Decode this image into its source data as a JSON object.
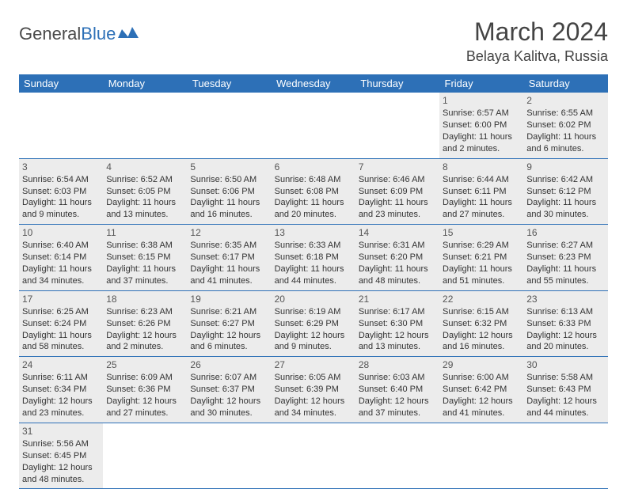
{
  "logo": {
    "text1": "General",
    "text2": "Blue"
  },
  "title": "March 2024",
  "location": "Belaya Kalitva, Russia",
  "headers": [
    "Sunday",
    "Monday",
    "Tuesday",
    "Wednesday",
    "Thursday",
    "Friday",
    "Saturday"
  ],
  "colors": {
    "header_bg": "#2d70b7",
    "header_text": "#ffffff",
    "shaded_bg": "#ececec",
    "border": "#2d70b7",
    "text": "#333333",
    "title_text": "#444444"
  },
  "weeks": [
    [
      null,
      null,
      null,
      null,
      null,
      {
        "n": "1",
        "sr": "Sunrise: 6:57 AM",
        "ss": "Sunset: 6:00 PM",
        "dl": "Daylight: 11 hours and 2 minutes."
      },
      {
        "n": "2",
        "sr": "Sunrise: 6:55 AM",
        "ss": "Sunset: 6:02 PM",
        "dl": "Daylight: 11 hours and 6 minutes."
      }
    ],
    [
      {
        "n": "3",
        "sr": "Sunrise: 6:54 AM",
        "ss": "Sunset: 6:03 PM",
        "dl": "Daylight: 11 hours and 9 minutes."
      },
      {
        "n": "4",
        "sr": "Sunrise: 6:52 AM",
        "ss": "Sunset: 6:05 PM",
        "dl": "Daylight: 11 hours and 13 minutes."
      },
      {
        "n": "5",
        "sr": "Sunrise: 6:50 AM",
        "ss": "Sunset: 6:06 PM",
        "dl": "Daylight: 11 hours and 16 minutes."
      },
      {
        "n": "6",
        "sr": "Sunrise: 6:48 AM",
        "ss": "Sunset: 6:08 PM",
        "dl": "Daylight: 11 hours and 20 minutes."
      },
      {
        "n": "7",
        "sr": "Sunrise: 6:46 AM",
        "ss": "Sunset: 6:09 PM",
        "dl": "Daylight: 11 hours and 23 minutes."
      },
      {
        "n": "8",
        "sr": "Sunrise: 6:44 AM",
        "ss": "Sunset: 6:11 PM",
        "dl": "Daylight: 11 hours and 27 minutes."
      },
      {
        "n": "9",
        "sr": "Sunrise: 6:42 AM",
        "ss": "Sunset: 6:12 PM",
        "dl": "Daylight: 11 hours and 30 minutes."
      }
    ],
    [
      {
        "n": "10",
        "sr": "Sunrise: 6:40 AM",
        "ss": "Sunset: 6:14 PM",
        "dl": "Daylight: 11 hours and 34 minutes."
      },
      {
        "n": "11",
        "sr": "Sunrise: 6:38 AM",
        "ss": "Sunset: 6:15 PM",
        "dl": "Daylight: 11 hours and 37 minutes."
      },
      {
        "n": "12",
        "sr": "Sunrise: 6:35 AM",
        "ss": "Sunset: 6:17 PM",
        "dl": "Daylight: 11 hours and 41 minutes."
      },
      {
        "n": "13",
        "sr": "Sunrise: 6:33 AM",
        "ss": "Sunset: 6:18 PM",
        "dl": "Daylight: 11 hours and 44 minutes."
      },
      {
        "n": "14",
        "sr": "Sunrise: 6:31 AM",
        "ss": "Sunset: 6:20 PM",
        "dl": "Daylight: 11 hours and 48 minutes."
      },
      {
        "n": "15",
        "sr": "Sunrise: 6:29 AM",
        "ss": "Sunset: 6:21 PM",
        "dl": "Daylight: 11 hours and 51 minutes."
      },
      {
        "n": "16",
        "sr": "Sunrise: 6:27 AM",
        "ss": "Sunset: 6:23 PM",
        "dl": "Daylight: 11 hours and 55 minutes."
      }
    ],
    [
      {
        "n": "17",
        "sr": "Sunrise: 6:25 AM",
        "ss": "Sunset: 6:24 PM",
        "dl": "Daylight: 11 hours and 58 minutes."
      },
      {
        "n": "18",
        "sr": "Sunrise: 6:23 AM",
        "ss": "Sunset: 6:26 PM",
        "dl": "Daylight: 12 hours and 2 minutes."
      },
      {
        "n": "19",
        "sr": "Sunrise: 6:21 AM",
        "ss": "Sunset: 6:27 PM",
        "dl": "Daylight: 12 hours and 6 minutes."
      },
      {
        "n": "20",
        "sr": "Sunrise: 6:19 AM",
        "ss": "Sunset: 6:29 PM",
        "dl": "Daylight: 12 hours and 9 minutes."
      },
      {
        "n": "21",
        "sr": "Sunrise: 6:17 AM",
        "ss": "Sunset: 6:30 PM",
        "dl": "Daylight: 12 hours and 13 minutes."
      },
      {
        "n": "22",
        "sr": "Sunrise: 6:15 AM",
        "ss": "Sunset: 6:32 PM",
        "dl": "Daylight: 12 hours and 16 minutes."
      },
      {
        "n": "23",
        "sr": "Sunrise: 6:13 AM",
        "ss": "Sunset: 6:33 PM",
        "dl": "Daylight: 12 hours and 20 minutes."
      }
    ],
    [
      {
        "n": "24",
        "sr": "Sunrise: 6:11 AM",
        "ss": "Sunset: 6:34 PM",
        "dl": "Daylight: 12 hours and 23 minutes."
      },
      {
        "n": "25",
        "sr": "Sunrise: 6:09 AM",
        "ss": "Sunset: 6:36 PM",
        "dl": "Daylight: 12 hours and 27 minutes."
      },
      {
        "n": "26",
        "sr": "Sunrise: 6:07 AM",
        "ss": "Sunset: 6:37 PM",
        "dl": "Daylight: 12 hours and 30 minutes."
      },
      {
        "n": "27",
        "sr": "Sunrise: 6:05 AM",
        "ss": "Sunset: 6:39 PM",
        "dl": "Daylight: 12 hours and 34 minutes."
      },
      {
        "n": "28",
        "sr": "Sunrise: 6:03 AM",
        "ss": "Sunset: 6:40 PM",
        "dl": "Daylight: 12 hours and 37 minutes."
      },
      {
        "n": "29",
        "sr": "Sunrise: 6:00 AM",
        "ss": "Sunset: 6:42 PM",
        "dl": "Daylight: 12 hours and 41 minutes."
      },
      {
        "n": "30",
        "sr": "Sunrise: 5:58 AM",
        "ss": "Sunset: 6:43 PM",
        "dl": "Daylight: 12 hours and 44 minutes."
      }
    ],
    [
      {
        "n": "31",
        "sr": "Sunrise: 5:56 AM",
        "ss": "Sunset: 6:45 PM",
        "dl": "Daylight: 12 hours and 48 minutes."
      },
      null,
      null,
      null,
      null,
      null,
      null
    ]
  ]
}
